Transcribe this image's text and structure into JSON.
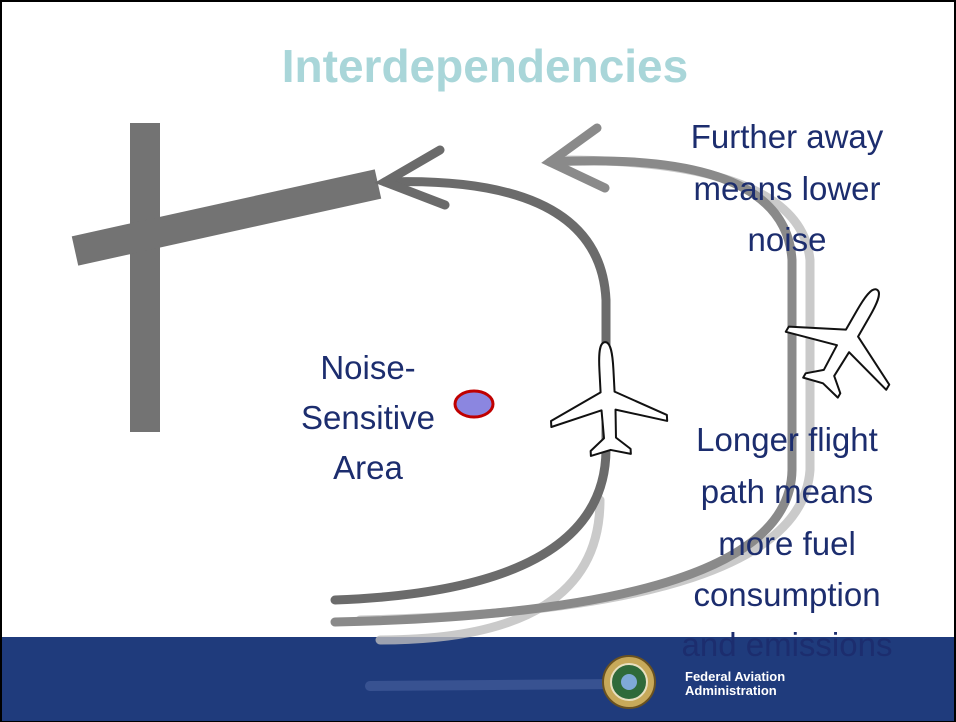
{
  "title": "Interdependencies",
  "annotations": [
    {
      "lines": [
        "Noise-",
        "Sensitive",
        "Area"
      ]
    },
    {
      "lines": [
        "Further away",
        "means lower",
        "noise"
      ]
    },
    {
      "lines": [
        "Longer flight",
        "path means",
        "more fuel",
        "consumption",
        "and emissions"
      ]
    }
  ],
  "footer": {
    "lines": [
      "Federal Aviation",
      "Administration"
    ]
  }
}
